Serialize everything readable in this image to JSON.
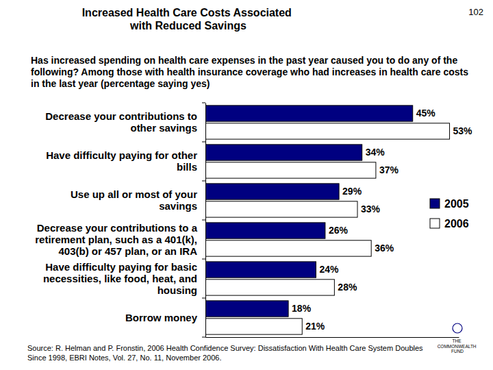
{
  "chart_data": {
    "type": "bar",
    "orientation": "horizontal",
    "page_number": "102",
    "title": "Increased Health Care Costs Associated with Reduced Savings",
    "subtitle": "Has increased spending on health care expenses in the past year caused you to do any of the following? Among those with health insurance coverage who had increases in health care costs in the last year (percentage saying yes)",
    "categories": [
      "Decrease your contributions to other savings",
      "Have difficulty paying for other bills",
      "Use up all or most of your savings",
      "Decrease your contributions to a retirement plan, such as a 401(k), 403(b) or 457 plan, or an IRA",
      "Have difficulty paying for basic necessities, like food, heat, and housing",
      "Borrow money"
    ],
    "series": [
      {
        "name": "2005",
        "color": "#000080",
        "values": [
          45,
          34,
          29,
          26,
          24,
          18
        ],
        "value_labels": [
          "45%",
          "34%",
          "29%",
          "26%",
          "24%",
          "18%"
        ]
      },
      {
        "name": "2006",
        "color": "#ffffff",
        "values": [
          53,
          37,
          33,
          36,
          28,
          21
        ],
        "value_labels": [
          "53%",
          "37%",
          "33%",
          "36%",
          "28%",
          "21%"
        ]
      }
    ],
    "xlim": [
      0,
      55
    ],
    "data_labels": true,
    "tick_labels": false,
    "grid": false,
    "legend": "right",
    "source": "Source: R. Helman and P. Fronstin, 2006 Health Confidence Survey: Dissatisfaction With Health Care System Doubles Since 1998, EBRI Notes, Vol. 27, No. 11, November 2006.",
    "logo": "THE COMMONWEALTH FUND"
  }
}
